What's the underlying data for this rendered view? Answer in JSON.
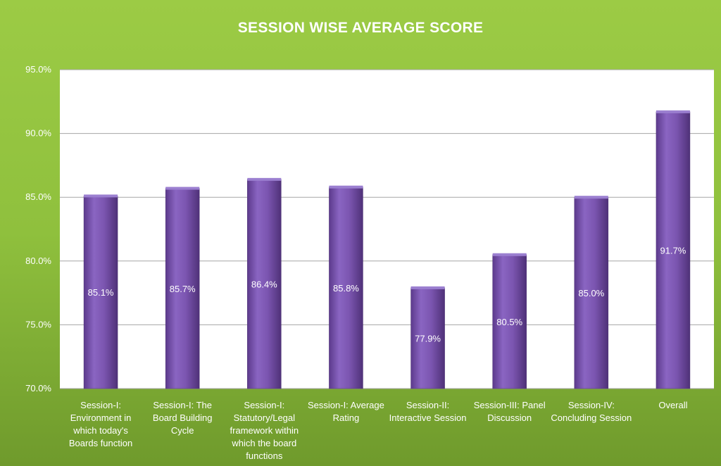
{
  "chart_data": {
    "type": "bar",
    "title": "SESSION WISE AVERAGE SCORE",
    "categories": [
      [
        "Session-I:",
        "Environment in",
        "which today's",
        "Boards function"
      ],
      [
        "Session-I: The",
        "Board Building",
        "Cycle"
      ],
      [
        "Session-I:",
        "Statutory/Legal",
        "framework within",
        "which the board",
        "functions"
      ],
      [
        "Session-I: Average",
        "Rating"
      ],
      [
        "Session-II:",
        "Interactive Session"
      ],
      [
        "Session-III: Panel",
        "Discussion"
      ],
      [
        "Session-IV:",
        "Concluding Session"
      ],
      [
        "Overall"
      ]
    ],
    "values": [
      85.1,
      85.7,
      86.4,
      85.8,
      77.9,
      80.5,
      85.0,
      91.7
    ],
    "data_labels": [
      "85.1%",
      "85.7%",
      "86.4%",
      "85.8%",
      "77.9%",
      "80.5%",
      "85.0%",
      "91.7%"
    ],
    "ylim": [
      70,
      95
    ],
    "yticks": [
      70,
      75,
      80,
      85,
      90,
      95
    ],
    "ytick_labels": [
      "70.0%",
      "75.0%",
      "80.0%",
      "85.0%",
      "90.0%",
      "95.0%"
    ],
    "xlabel": "",
    "ylabel": "",
    "grid": true,
    "colors": {
      "bar": "#7b55b0",
      "plot_bg": "#ffffff",
      "grid": "#a6a6a6",
      "text": "#ffffff"
    }
  }
}
